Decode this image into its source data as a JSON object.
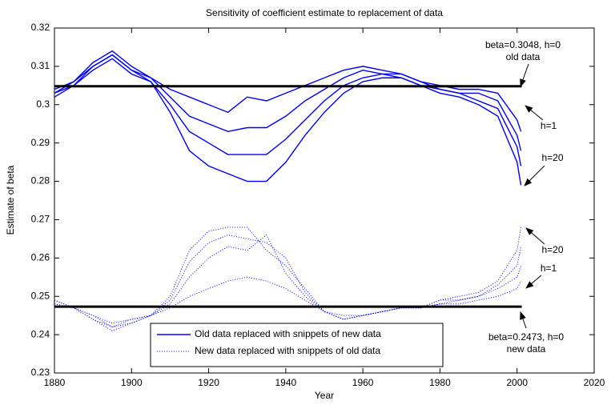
{
  "chart_data": {
    "type": "line",
    "title": "Sensitivity of coefficient estimate to replacement of data",
    "x_label": "Year",
    "y_label": "Estimate of beta",
    "xlim": [
      1880,
      2020
    ],
    "xticks": [
      1880,
      1900,
      1920,
      1940,
      1960,
      1980,
      2000,
      2020
    ],
    "ylim": [
      0.23,
      0.32
    ],
    "yticks": [
      0.23,
      0.24,
      0.25,
      0.26,
      0.27,
      0.28,
      0.29,
      0.3,
      0.31,
      0.32
    ],
    "legend": "lower center",
    "x": [
      1880,
      1885,
      1890,
      1895,
      1900,
      1905,
      1910,
      1915,
      1920,
      1925,
      1930,
      1935,
      1940,
      1945,
      1950,
      1955,
      1960,
      1965,
      1970,
      1975,
      1980,
      1985,
      1990,
      1995,
      2000,
      2001
    ],
    "series": [
      {
        "name": "Old data replaced with snippets of new data",
        "color": "#0000ff",
        "style": "solid",
        "lines": [
          [
            0.304,
            0.306,
            0.311,
            0.314,
            0.31,
            0.307,
            0.304,
            0.302,
            0.3,
            0.298,
            0.302,
            0.301,
            0.303,
            0.305,
            0.307,
            0.309,
            0.31,
            0.309,
            0.308,
            0.306,
            0.305,
            0.304,
            0.304,
            0.303,
            0.296,
            0.293
          ],
          [
            0.303,
            0.306,
            0.31,
            0.313,
            0.309,
            0.307,
            0.302,
            0.297,
            0.295,
            0.293,
            0.294,
            0.294,
            0.297,
            0.301,
            0.304,
            0.307,
            0.309,
            0.308,
            0.308,
            0.306,
            0.304,
            0.303,
            0.303,
            0.301,
            0.292,
            0.288
          ],
          [
            0.303,
            0.305,
            0.31,
            0.313,
            0.309,
            0.306,
            0.3,
            0.293,
            0.29,
            0.287,
            0.287,
            0.287,
            0.291,
            0.296,
            0.301,
            0.305,
            0.307,
            0.308,
            0.307,
            0.305,
            0.304,
            0.303,
            0.301,
            0.299,
            0.289,
            0.284
          ],
          [
            0.302,
            0.305,
            0.309,
            0.312,
            0.308,
            0.306,
            0.298,
            0.288,
            0.284,
            0.282,
            0.28,
            0.28,
            0.285,
            0.292,
            0.298,
            0.303,
            0.306,
            0.307,
            0.307,
            0.305,
            0.303,
            0.302,
            0.3,
            0.297,
            0.285,
            0.279
          ]
        ]
      },
      {
        "name": "New data replaced with snippets of old data",
        "color": "#0000ff",
        "style": "dotted",
        "lines": [
          [
            0.248,
            0.247,
            0.245,
            0.243,
            0.244,
            0.245,
            0.247,
            0.25,
            0.252,
            0.254,
            0.255,
            0.254,
            0.252,
            0.249,
            0.246,
            0.245,
            0.245,
            0.246,
            0.247,
            0.247,
            0.248,
            0.248,
            0.249,
            0.25,
            0.252,
            0.254
          ],
          [
            0.248,
            0.247,
            0.245,
            0.242,
            0.244,
            0.245,
            0.248,
            0.255,
            0.26,
            0.263,
            0.262,
            0.266,
            0.256,
            0.25,
            0.246,
            0.244,
            0.245,
            0.246,
            0.247,
            0.247,
            0.248,
            0.249,
            0.25,
            0.252,
            0.255,
            0.258
          ],
          [
            0.249,
            0.247,
            0.244,
            0.242,
            0.243,
            0.245,
            0.249,
            0.259,
            0.264,
            0.266,
            0.265,
            0.264,
            0.26,
            0.251,
            0.246,
            0.244,
            0.245,
            0.246,
            0.247,
            0.247,
            0.249,
            0.249,
            0.25,
            0.253,
            0.258,
            0.263
          ],
          [
            0.249,
            0.247,
            0.244,
            0.241,
            0.243,
            0.245,
            0.25,
            0.262,
            0.267,
            0.268,
            0.268,
            0.262,
            0.258,
            0.252,
            0.246,
            0.244,
            0.245,
            0.246,
            0.247,
            0.247,
            0.249,
            0.25,
            0.251,
            0.254,
            0.262,
            0.268
          ]
        ]
      }
    ],
    "hlines": [
      0.3048,
      0.2473
    ],
    "hline_color": "#000000",
    "annotations": [
      "beta=0.3048, h=0",
      "old data",
      "h=1",
      "h=20",
      "h=20",
      "h=1",
      "beta=0.2473, h=0",
      "new data"
    ]
  }
}
